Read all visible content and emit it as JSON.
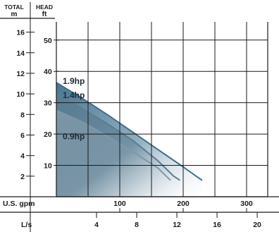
{
  "chart_data": {
    "type": "area",
    "header": {
      "left_title": "TOTAL",
      "left_unit": "m",
      "right_title": "HEAD",
      "right_unit": "ft"
    },
    "y_left": {
      "unit": "m",
      "ticks": [
        2,
        4,
        6,
        8,
        10,
        12,
        14,
        16
      ],
      "range": [
        0,
        17
      ]
    },
    "y_right": {
      "unit": "ft",
      "ticks": [
        10,
        20,
        30,
        40,
        50
      ],
      "range": [
        0,
        55.8
      ]
    },
    "x_gpm": {
      "label": "U.S. gpm",
      "ticks": [
        100,
        200,
        300
      ],
      "range": [
        0,
        350
      ]
    },
    "x_ls": {
      "label": "L/s",
      "ticks": [
        4,
        8,
        12,
        16,
        20
      ],
      "range": [
        0,
        22.1
      ]
    },
    "series": [
      {
        "name": "1.9hp",
        "color": "#3f6f8c",
        "x_gpm": [
          0,
          40,
          80,
          120,
          160,
          200,
          225,
          230
        ],
        "head_m": [
          11.1,
          9.6,
          8.0,
          6.3,
          4.6,
          2.9,
          1.8,
          1.6
        ]
      },
      {
        "name": "1.4hp",
        "color": "#5a7d93",
        "x_gpm": [
          0,
          40,
          80,
          120,
          160,
          185,
          195
        ],
        "head_m": [
          9.9,
          8.6,
          7.1,
          5.5,
          3.5,
          2.0,
          1.6
        ]
      },
      {
        "name": "0.9hp",
        "color": "#7e98a8",
        "x_gpm": [
          0,
          40,
          80,
          120,
          160,
          175,
          180
        ],
        "head_m": [
          8.4,
          7.3,
          5.9,
          4.4,
          2.8,
          1.9,
          1.6
        ]
      }
    ],
    "grid": true
  }
}
